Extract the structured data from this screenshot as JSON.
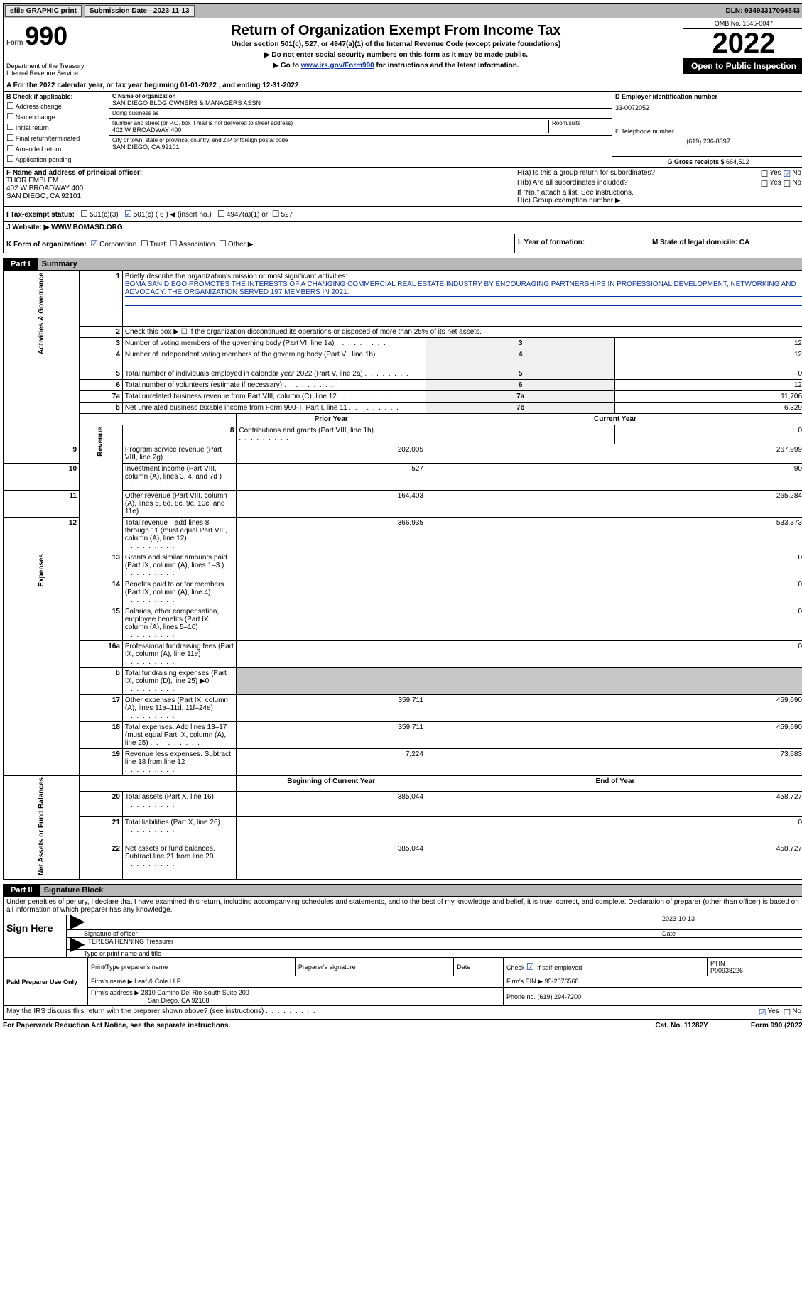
{
  "topbar": {
    "efile": "efile GRAPHIC print",
    "sub_date_label": "Submission Date - 2023-11-13",
    "dln": "DLN: 93493317064543"
  },
  "header": {
    "form_word": "Form",
    "form_num": "990",
    "dept": "Department of the Treasury\nInternal Revenue Service",
    "title": "Return of Organization Exempt From Income Tax",
    "subtitle": "Under section 501(c), 527, or 4947(a)(1) of the Internal Revenue Code (except private foundations)",
    "instr1": "▶ Do not enter social security numbers on this form as it may be made public.",
    "instr2_pre": "▶ Go to ",
    "instr2_link": "www.irs.gov/Form990",
    "instr2_post": " for instructions and the latest information.",
    "omb": "OMB No. 1545-0047",
    "year": "2022",
    "open_pub": "Open to Public Inspection"
  },
  "rowA": "A For the 2022 calendar year, or tax year beginning 01-01-2022    , and ending 12-31-2022",
  "colB": {
    "label": "B Check if applicable:",
    "items": [
      "Address change",
      "Name change",
      "Initial return",
      "Final return/terminated",
      "Amended return",
      "Application pending"
    ]
  },
  "colC": {
    "name_label": "C Name of organization",
    "name": "SAN DIEGO BLDG OWNERS & MANAGERS ASSN",
    "dba_label": "Doing business as",
    "dba": "",
    "street_label": "Number and street (or P.O. box if mail is not delivered to street address)",
    "street": "402 W BROADWAY 400",
    "suite_label": "Room/suite",
    "city_label": "City or town, state or province, country, and ZIP or foreign postal code",
    "city": "SAN DIEGO, CA  92101"
  },
  "colD": {
    "ein_label": "D Employer identification number",
    "ein": "33-0072052",
    "phone_label": "E Telephone number",
    "phone": "(619) 236-8397",
    "gross_label": "G Gross receipts $ ",
    "gross": "664,512"
  },
  "rowF": {
    "label": "F  Name and address of principal officer:",
    "name": "THOR EMBLEM",
    "addr1": "402 W BROADWAY 400",
    "addr2": "SAN DIEGO, CA  92101"
  },
  "rowH": {
    "ha": "H(a)  Is this a group return for subordinates?",
    "ha_yes": "Yes",
    "ha_no": "No",
    "hb": "H(b)  Are all subordinates included?",
    "hb_yes": "Yes",
    "hb_no": "No",
    "hb_note": "If \"No,\" attach a list. See instructions.",
    "hc": "H(c)  Group exemption number ▶"
  },
  "rowI": {
    "label": "I   Tax-exempt status:",
    "c3": "501(c)(3)",
    "c": "501(c) ( 6 ) ◀ (insert no.)",
    "a1": "4947(a)(1) or",
    "s527": "527"
  },
  "rowJ": {
    "label": "J   Website: ▶ ",
    "site": "WWW.BOMASD.ORG"
  },
  "rowK": {
    "label": "K Form of organization:",
    "corp": "Corporation",
    "trust": "Trust",
    "assoc": "Association",
    "other": "Other ▶"
  },
  "rowL": {
    "label": "L Year of formation:"
  },
  "rowM": {
    "label": "M State of legal domicile: CA"
  },
  "part1": {
    "num": "Part I",
    "title": "Summary"
  },
  "summary": {
    "tabs": [
      "Activities & Governance",
      "Revenue",
      "Expenses",
      "Net Assets or Fund Balances"
    ],
    "line1_label": "Briefly describe the organization's mission or most significant activities:",
    "line1_text": "BOMA SAN DIEGO PROMOTES THE INTERESTS OF A CHANGING COMMERCIAL REAL ESTATE INDUSTRY BY ENCOURAGING PARTNERSHIPS IN PROFESSIONAL DEVELOPMENT, NETWORKING AND ADVOCACY. THE ORGANIZATION SERVED 197 MEMBERS IN 2021.",
    "line2": "Check this box ▶ ☐  if the organization discontinued its operations or disposed of more than 25% of its net assets.",
    "rows_ag": [
      {
        "n": "3",
        "t": "Number of voting members of the governing body (Part VI, line 1a)",
        "b": "3",
        "v": "12"
      },
      {
        "n": "4",
        "t": "Number of independent voting members of the governing body (Part VI, line 1b)",
        "b": "4",
        "v": "12"
      },
      {
        "n": "5",
        "t": "Total number of individuals employed in calendar year 2022 (Part V, line 2a)",
        "b": "5",
        "v": "0"
      },
      {
        "n": "6",
        "t": "Total number of volunteers (estimate if necessary)",
        "b": "6",
        "v": "12"
      },
      {
        "n": "7a",
        "t": "Total unrelated business revenue from Part VIII, column (C), line 12",
        "b": "7a",
        "v": "11,706"
      },
      {
        "n": "b",
        "t": "Net unrelated business taxable income from Form 990-T, Part I, line 11",
        "b": "7b",
        "v": "6,329"
      }
    ],
    "col_prior": "Prior Year",
    "col_curr": "Current Year",
    "rows_rev": [
      {
        "n": "8",
        "t": "Contributions and grants (Part VIII, line 1h)",
        "p": "",
        "c": "0"
      },
      {
        "n": "9",
        "t": "Program service revenue (Part VIII, line 2g)",
        "p": "202,005",
        "c": "267,999"
      },
      {
        "n": "10",
        "t": "Investment income (Part VIII, column (A), lines 3, 4, and 7d )",
        "p": "527",
        "c": "90"
      },
      {
        "n": "11",
        "t": "Other revenue (Part VIII, column (A), lines 5, 6d, 8c, 9c, 10c, and 11e)",
        "p": "164,403",
        "c": "265,284"
      },
      {
        "n": "12",
        "t": "Total revenue—add lines 8 through 11 (must equal Part VIII, column (A), line 12)",
        "p": "366,935",
        "c": "533,373"
      }
    ],
    "rows_exp": [
      {
        "n": "13",
        "t": "Grants and similar amounts paid (Part IX, column (A), lines 1–3 )",
        "p": "",
        "c": "0"
      },
      {
        "n": "14",
        "t": "Benefits paid to or for members (Part IX, column (A), line 4)",
        "p": "",
        "c": "0"
      },
      {
        "n": "15",
        "t": "Salaries, other compensation, employee benefits (Part IX, column (A), lines 5–10)",
        "p": "",
        "c": "0"
      },
      {
        "n": "16a",
        "t": "Professional fundraising fees (Part IX, column (A), line 11e)",
        "p": "",
        "c": "0"
      },
      {
        "n": "b",
        "t": "Total fundraising expenses (Part IX, column (D), line 25) ▶0",
        "p": "SHADE",
        "c": "SHADE"
      },
      {
        "n": "17",
        "t": "Other expenses (Part IX, column (A), lines 11a–11d, 11f–24e)",
        "p": "359,711",
        "c": "459,690"
      },
      {
        "n": "18",
        "t": "Total expenses. Add lines 13–17 (must equal Part IX, column (A), line 25)",
        "p": "359,711",
        "c": "459,690"
      },
      {
        "n": "19",
        "t": "Revenue less expenses. Subtract line 18 from line 12",
        "p": "7,224",
        "c": "73,683"
      }
    ],
    "col_beg": "Beginning of Current Year",
    "col_end": "End of Year",
    "rows_na": [
      {
        "n": "20",
        "t": "Total assets (Part X, line 16)",
        "p": "385,044",
        "c": "458,727"
      },
      {
        "n": "21",
        "t": "Total liabilities (Part X, line 26)",
        "p": "",
        "c": "0"
      },
      {
        "n": "22",
        "t": "Net assets or fund balances. Subtract line 21 from line 20",
        "p": "385,044",
        "c": "458,727"
      }
    ]
  },
  "part2": {
    "num": "Part II",
    "title": "Signature Block"
  },
  "penalties": "Under penalties of perjury, I declare that I have examined this return, including accompanying schedules and statements, and to the best of my knowledge and belief, it is true, correct, and complete. Declaration of preparer (other than officer) is based on all information of which preparer has any knowledge.",
  "sign": {
    "here": "Sign Here",
    "sig_of": "Signature of officer",
    "date": "Date",
    "date_val": "2023-10-13",
    "name": "TERESA HENNING  Treasurer",
    "name_label": "Type or print name and title"
  },
  "prep": {
    "here": "Paid Preparer Use Only",
    "c1": "Print/Type preparer's name",
    "c2": "Preparer's signature",
    "c3": "Date",
    "c4_pre": "Check",
    "c4_post": "if self-employed",
    "c5": "PTIN",
    "c5v": "P00938226",
    "firm_label": "Firm's name    ▶",
    "firm": "Leaf & Cole LLP",
    "ein_label": "Firm's EIN ▶",
    "ein": "95-2076568",
    "addr_label": "Firm's address ▶",
    "addr1": "2810 Camino Del Rio South Suite 200",
    "addr2": "San Diego, CA  92108",
    "phone_label": "Phone no.",
    "phone": "(619) 294-7200"
  },
  "discuss": {
    "q": "May the IRS discuss this return with the preparer shown above? (see instructions)",
    "yes": "Yes",
    "no": "No"
  },
  "footer": {
    "pra": "For Paperwork Reduction Act Notice, see the separate instructions.",
    "cat": "Cat. No. 11282Y",
    "form": "Form 990 (2022)"
  }
}
